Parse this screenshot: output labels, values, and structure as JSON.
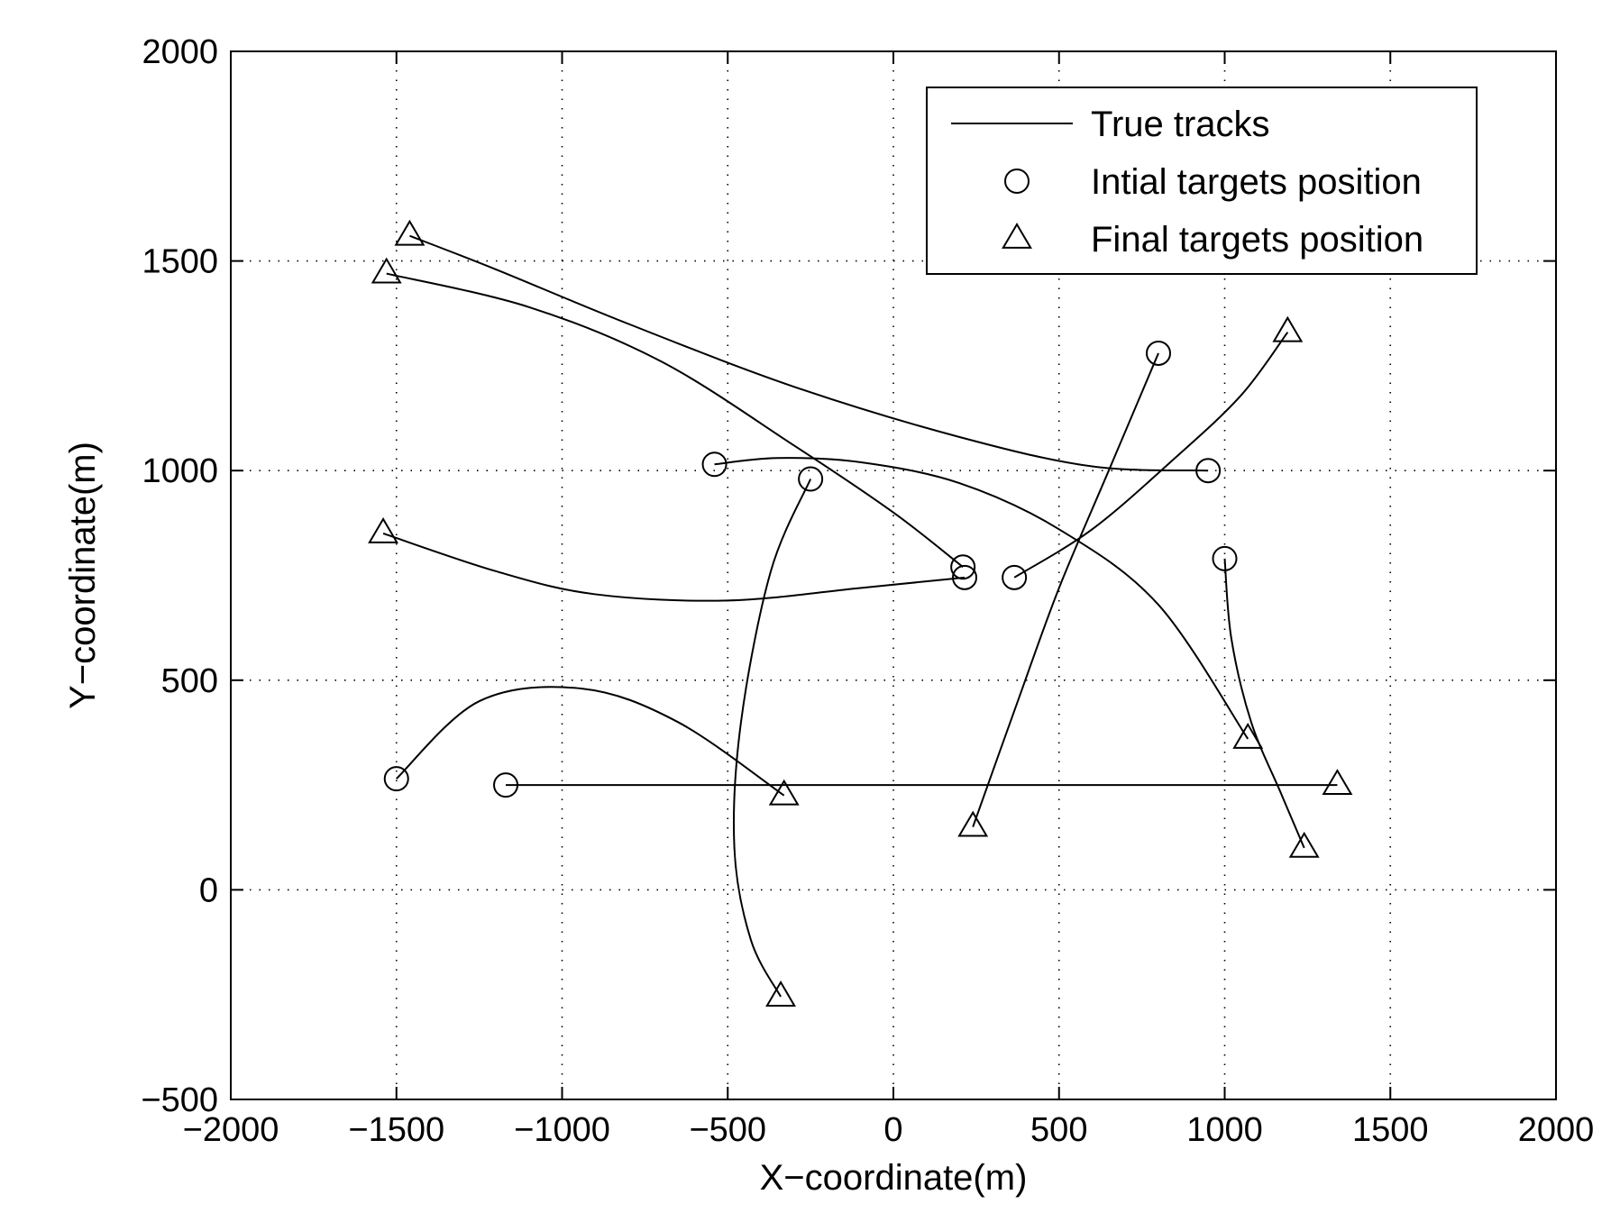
{
  "chart_data": {
    "type": "line",
    "title": "",
    "xlabel": "X−coordinate(m)",
    "ylabel": "Y−coordinate(m)",
    "xlim": [
      -2000,
      2000
    ],
    "ylim": [
      -500,
      2000
    ],
    "xticks": [
      -2000,
      -1500,
      -1000,
      -500,
      0,
      500,
      1000,
      1500,
      2000
    ],
    "yticks": [
      -500,
      0,
      500,
      1000,
      1500,
      2000
    ],
    "xtick_labels": [
      "−2000",
      "−1500",
      "−1000",
      "−500",
      "0",
      "500",
      "1000",
      "1500",
      "2000"
    ],
    "ytick_labels": [
      "−500",
      "0",
      "500",
      "1000",
      "1500",
      "2000"
    ],
    "grid": true,
    "grid_style": "dotted",
    "legend_position": "top-right",
    "legend": [
      {
        "label": "True tracks",
        "marker": "line"
      },
      {
        "label": "Intial targets position",
        "marker": "circle"
      },
      {
        "label": "Final targets position",
        "marker": "triangle"
      }
    ],
    "series": [
      {
        "points": [
          [
            950,
            1000
          ],
          [
            600,
            1010
          ],
          [
            200,
            1080
          ],
          [
            -300,
            1200
          ],
          [
            -800,
            1350
          ],
          [
            -1200,
            1480
          ],
          [
            -1460,
            1560
          ]
        ]
      },
      {
        "points": [
          [
            210,
            770
          ],
          [
            0,
            900
          ],
          [
            -300,
            1060
          ],
          [
            -700,
            1260
          ],
          [
            -1100,
            1390
          ],
          [
            -1530,
            1470
          ]
        ]
      },
      {
        "points": [
          [
            215,
            745
          ],
          [
            -100,
            720
          ],
          [
            -500,
            690
          ],
          [
            -900,
            705
          ],
          [
            -1200,
            760
          ],
          [
            -1540,
            850
          ]
        ]
      },
      {
        "points": [
          [
            -540,
            1015
          ],
          [
            -350,
            1030
          ],
          [
            -100,
            1020
          ],
          [
            200,
            970
          ],
          [
            500,
            860
          ],
          [
            800,
            680
          ],
          [
            1070,
            360
          ]
        ]
      },
      {
        "points": [
          [
            -250,
            980
          ],
          [
            -370,
            760
          ],
          [
            -460,
            400
          ],
          [
            -480,
            100
          ],
          [
            -430,
            -120
          ],
          [
            -340,
            -255
          ]
        ]
      },
      {
        "points": [
          [
            -1500,
            265
          ],
          [
            -1250,
            450
          ],
          [
            -940,
            480
          ],
          [
            -650,
            400
          ],
          [
            -330,
            225
          ]
        ]
      },
      {
        "points": [
          [
            -1170,
            250
          ],
          [
            0,
            250
          ],
          [
            1340,
            250
          ]
        ]
      },
      {
        "points": [
          [
            800,
            1280
          ],
          [
            650,
            1000
          ],
          [
            500,
            720
          ],
          [
            380,
            460
          ],
          [
            240,
            150
          ]
        ]
      },
      {
        "points": [
          [
            365,
            745
          ],
          [
            600,
            860
          ],
          [
            850,
            1030
          ],
          [
            1050,
            1180
          ],
          [
            1190,
            1330
          ]
        ]
      },
      {
        "points": [
          [
            1000,
            790
          ],
          [
            1020,
            600
          ],
          [
            1080,
            400
          ],
          [
            1170,
            230
          ],
          [
            1240,
            100
          ]
        ]
      }
    ]
  }
}
